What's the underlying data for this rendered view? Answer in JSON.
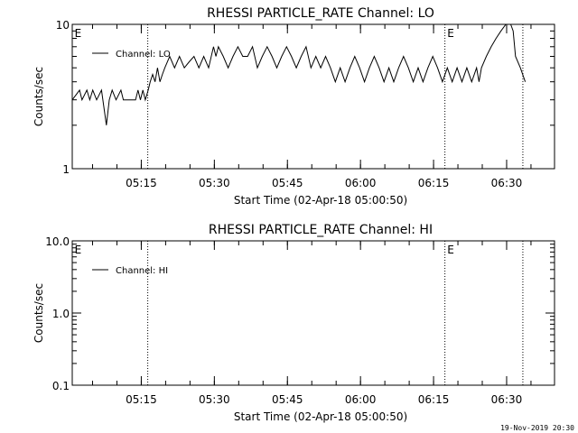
{
  "footer": {
    "timestamp": "19-Nov-2019 20:30"
  },
  "chart_data": [
    {
      "type": "line",
      "title": "RHESSI PARTICLE_RATE Channel: LO",
      "xlabel": "Start Time (02-Apr-18 05:00:50)",
      "ylabel": "Counts/sec",
      "yscale": "log",
      "ylim": [
        1,
        10
      ],
      "ytick_labels": [
        "1",
        "10"
      ],
      "x_unit": "minutes from 05:00:50",
      "xlim": [
        0,
        99
      ],
      "xtick_labels": [
        "05:15",
        "05:30",
        "05:45",
        "06:00",
        "06:15",
        "06:30"
      ],
      "xtick_values": [
        14.17,
        29.17,
        44.17,
        59.17,
        74.17,
        89.17
      ],
      "event_lines": [
        15.5,
        76.5,
        92.5
      ],
      "event_markers": [
        {
          "label": "E",
          "x": 0.3
        },
        {
          "label": "E",
          "x": 76.8
        }
      ],
      "legend_position": "top-left",
      "series": [
        {
          "name": "Channel: LO",
          "x": [
            0,
            1.5,
            2,
            3,
            3.6,
            4.2,
            5,
            6,
            7,
            7.6,
            8.2,
            9,
            10,
            10.5,
            11,
            12,
            13,
            13.5,
            14,
            14.5,
            15,
            15.6,
            16,
            16.5,
            17,
            17.5,
            18,
            18.5,
            19,
            20,
            21,
            22,
            23,
            24,
            25,
            26,
            27,
            28,
            29,
            29.5,
            30,
            31,
            32,
            33,
            34,
            35,
            36,
            37,
            38,
            39,
            40,
            41,
            42,
            43,
            44,
            45,
            46,
            47,
            48,
            49,
            50,
            51,
            52,
            53,
            54,
            55,
            56,
            57,
            58,
            59,
            60,
            61,
            62,
            63,
            64,
            65,
            66,
            67,
            68,
            69,
            70,
            71,
            72,
            73,
            74,
            75,
            76,
            77,
            78,
            79,
            80,
            81,
            82,
            83,
            83.5,
            84,
            85,
            86,
            87,
            88,
            89,
            90,
            90.5,
            91,
            92,
            93
          ],
          "y": [
            3,
            3.5,
            3,
            3.5,
            3,
            3.5,
            3,
            3.5,
            2,
            3,
            3.5,
            3,
            3.5,
            3,
            3,
            3,
            3,
            3.5,
            3,
            3.5,
            3,
            3.5,
            4,
            4.5,
            4,
            5,
            4,
            4.5,
            5,
            6,
            5,
            6,
            5,
            5.5,
            6,
            5,
            6,
            5,
            7,
            6,
            7,
            6,
            5,
            6,
            7,
            6,
            6,
            7,
            5,
            6,
            7,
            6,
            5,
            6,
            7,
            6,
            5,
            6,
            7,
            5,
            6,
            5,
            6,
            5,
            4,
            5,
            4,
            5,
            6,
            5,
            4,
            5,
            6,
            5,
            4,
            5,
            4,
            5,
            6,
            5,
            4,
            5,
            4,
            5,
            6,
            5,
            4,
            5,
            4,
            5,
            4,
            5,
            4,
            5,
            4,
            5,
            6,
            7,
            8,
            9,
            10,
            10.5,
            9,
            6,
            5,
            4
          ]
        }
      ]
    },
    {
      "type": "line",
      "title": "RHESSI PARTICLE_RATE Channel: HI",
      "xlabel": "Start Time (02-Apr-18 05:00:50)",
      "ylabel": "Counts/sec",
      "yscale": "log",
      "ylim": [
        0.1,
        10.0
      ],
      "ytick_labels": [
        "0.1",
        "1.0",
        "10.0"
      ],
      "x_unit": "minutes from 05:00:50",
      "xlim": [
        0,
        99
      ],
      "xtick_labels": [
        "05:15",
        "05:30",
        "05:45",
        "06:00",
        "06:15",
        "06:30"
      ],
      "xtick_values": [
        14.17,
        29.17,
        44.17,
        59.17,
        74.17,
        89.17
      ],
      "event_lines": [
        15.5,
        76.5,
        92.5
      ],
      "event_markers": [
        {
          "label": "E",
          "x": 0.3
        },
        {
          "label": "E",
          "x": 76.8
        }
      ],
      "legend_position": "top-left",
      "series": [
        {
          "name": "Channel: HI",
          "x": [],
          "y": []
        }
      ]
    }
  ]
}
